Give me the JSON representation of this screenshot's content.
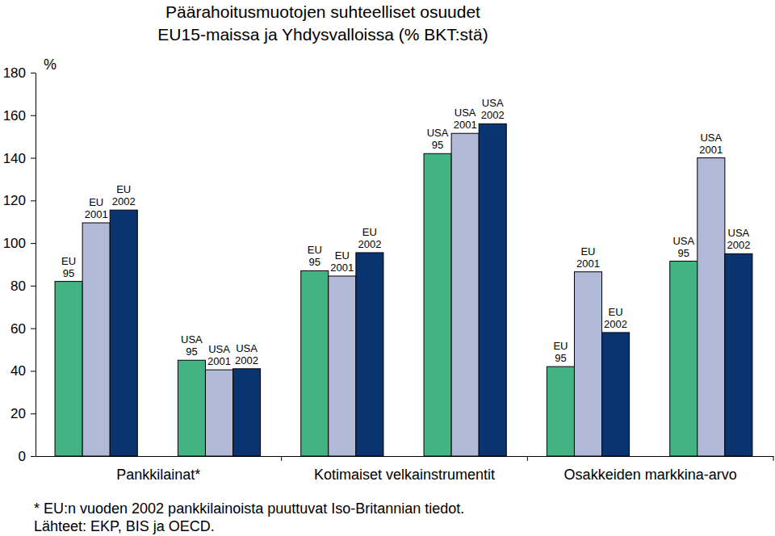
{
  "chart_data": {
    "type": "bar",
    "title": "Päärahoitusmuotojen suhteelliset osuudet\nEU15-maissa ja Yhdysvalloissa (% BKT:stä)",
    "y_label": "%",
    "categories": [
      "Pankkilainat*",
      "Kotimaiset velkainstrumentit",
      "Osakkeiden markkina-arvo"
    ],
    "series": [
      {
        "name": "EU 95",
        "color": "#44b383",
        "values": [
          82,
          87,
          42
        ]
      },
      {
        "name": "EU 2001",
        "color": "#b0b9d8",
        "values": [
          109.5,
          84.5,
          86.5
        ]
      },
      {
        "name": "EU 2002",
        "color": "#0a3470",
        "values": [
          115.5,
          95.5,
          58
        ]
      },
      {
        "name": "USA 95",
        "color": "#44b383",
        "values": [
          45,
          142,
          91.5
        ]
      },
      {
        "name": "USA 2001",
        "color": "#b0b9d8",
        "values": [
          40.5,
          151.5,
          140
        ]
      },
      {
        "name": "USA 2002",
        "color": "#0a3470",
        "values": [
          41,
          156,
          95
        ]
      }
    ],
    "ylim": [
      0,
      180
    ],
    "yticks": [
      0,
      20,
      40,
      60,
      80,
      100,
      120,
      140,
      160,
      180
    ],
    "grid": false,
    "data_labels": false,
    "footnotes": [
      "* EU:n vuoden 2002 pankkilainoista puuttuvat Iso-Britannian tiedot.",
      "Lähteet: EKP, BIS ja OECD."
    ]
  }
}
